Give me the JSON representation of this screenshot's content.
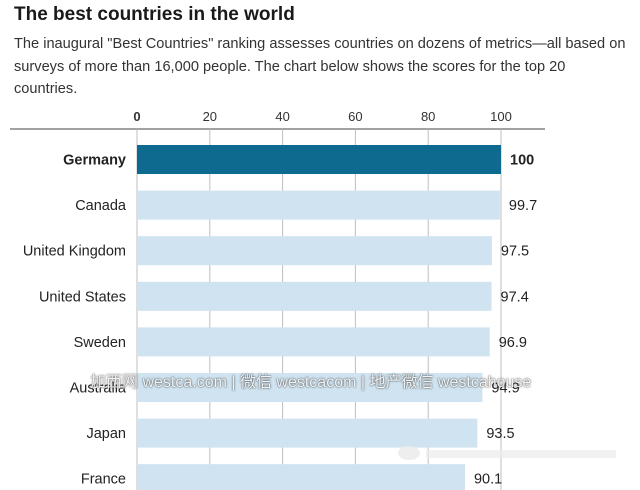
{
  "title": "The best countries in the world",
  "subtitle": "The inaugural \"Best Countries\" ranking assesses countries on dozens of metrics—all based on surveys of more than 16,000 people. The chart below shows the scores for the top 20 countries.",
  "watermark": "加西网 westca.com | 微信 westcacom | 地产微信 westcahouse",
  "colors": {
    "highlight": "#0e6a8f",
    "bar": "#cfe3f0",
    "grid": "#bfbfbf",
    "axis": "#444444"
  },
  "chart_data": {
    "type": "bar",
    "orientation": "horizontal",
    "categories": [
      "Germany",
      "Canada",
      "United Kingdom",
      "United States",
      "Sweden",
      "Australia",
      "Japan",
      "France"
    ],
    "values": [
      100,
      99.7,
      97.5,
      97.4,
      96.9,
      94.9,
      93.5,
      90.1
    ],
    "value_labels": [
      "100",
      "99.7",
      "97.5",
      "97.4",
      "96.9",
      "94.9",
      "93.5",
      "90.1"
    ],
    "highlighted": "Germany",
    "xlim": [
      0,
      100
    ],
    "xticks": [
      "0",
      "20",
      "40",
      "60",
      "80",
      "100"
    ],
    "xtick_values": [
      0,
      20,
      40,
      60,
      80,
      100
    ],
    "grid": true
  }
}
